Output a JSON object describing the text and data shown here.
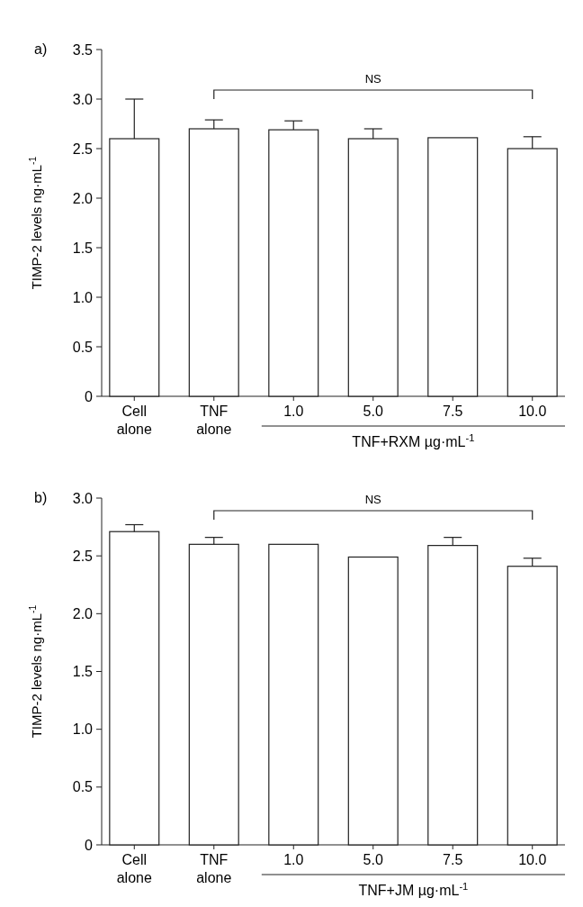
{
  "chart_data": [
    {
      "type": "bar",
      "title": "a)",
      "ylabel": "TIMP-2 levels ng·mL$^{-1}$",
      "xlabel": "TNF+RXM  µg·mL$^{-1}$",
      "categories": [
        "Cell alone",
        "TNF alone",
        "1.0",
        "5.0",
        "7.5",
        "10.0"
      ],
      "values": [
        2.6,
        2.7,
        2.69,
        2.6,
        2.61,
        2.5
      ],
      "errors": [
        [
          2.6,
          3.0
        ],
        [
          2.7,
          2.79
        ],
        [
          2.69,
          2.78
        ],
        [
          2.6,
          2.7
        ],
        null,
        [
          2.5,
          2.62
        ]
      ],
      "color": "#ffffff",
      "ylim": [
        0,
        3.5
      ],
      "yticks": [
        {
          "value": 0,
          "label": "0"
        },
        {
          "value": 0.5,
          "label": "0.5"
        },
        {
          "value": 1,
          "label": "1.0"
        },
        {
          "value": 1.5,
          "label": "1.5"
        },
        {
          "value": 2,
          "label": "2.0"
        },
        {
          "value": 2.5,
          "label": "2.5"
        },
        {
          "value": 3,
          "label": "3.0"
        },
        {
          "value": 3.5,
          "label": "3.5"
        }
      ],
      "annotations": [
        "NS"
      ]
    },
    {
      "type": "bar",
      "title": "b)",
      "ylabel": "TIMP-2 levels ng·mL$^{-1}$",
      "xlabel": "TNF+JM  µg·mL$^{-1}$",
      "categories": [
        "Cell alone",
        "TNF alone",
        "1.0",
        "5.0",
        "7.5",
        "10.0"
      ],
      "values": [
        2.71,
        2.6,
        2.6,
        2.49,
        2.59,
        2.41
      ],
      "errors": [
        [
          2.71,
          2.77
        ],
        [
          2.6,
          2.66
        ],
        null,
        null,
        [
          2.59,
          2.66
        ],
        [
          2.41,
          2.48
        ]
      ],
      "color": "#ffffff",
      "ylim": [
        0,
        3.0
      ],
      "yticks": [
        {
          "value": 0,
          "label": "0"
        },
        {
          "value": 0.5,
          "label": "0.5"
        },
        {
          "value": 1,
          "label": "1.0"
        },
        {
          "value": 1.5,
          "label": "1.5"
        },
        {
          "value": 2,
          "label": "2.0"
        },
        {
          "value": 2.5,
          "label": "2.5"
        },
        {
          "value": 3,
          "label": "3.0"
        }
      ],
      "annotations": [
        "NS"
      ]
    }
  ]
}
